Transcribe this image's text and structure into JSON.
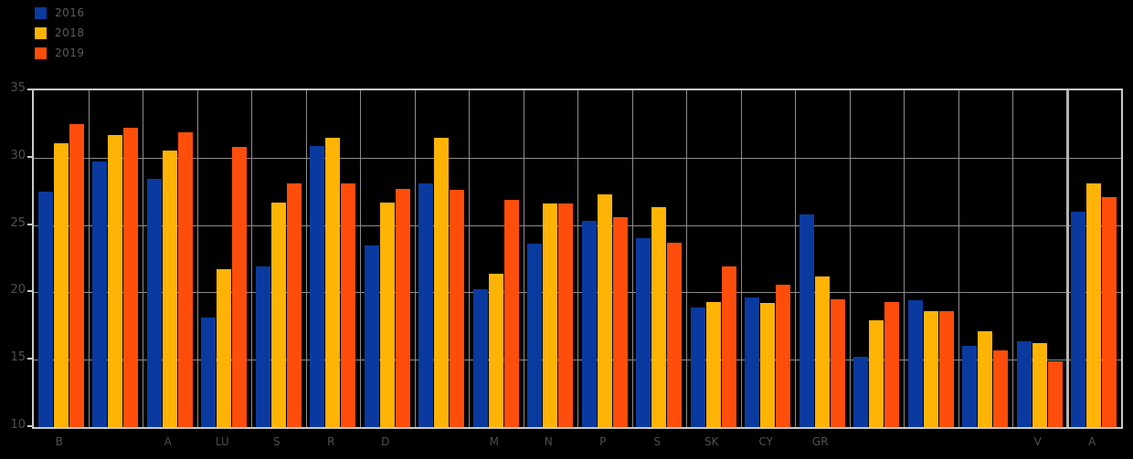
{
  "chart_data": {
    "type": "bar",
    "title": "",
    "xlabel": "",
    "ylabel": "",
    "categories": [
      "B",
      "",
      "A",
      "LU",
      "S",
      "R",
      "D",
      "",
      "M",
      "N",
      "P",
      "S",
      "SK",
      "CY",
      "GR",
      "",
      "",
      "",
      "V",
      "A"
    ],
    "series": [
      {
        "name": "2016",
        "color": "#0a3aa0",
        "values": [
          27.5,
          29.7,
          28.4,
          18.1,
          21.9,
          30.9,
          23.5,
          28.1,
          20.2,
          23.6,
          25.3,
          24.0,
          18.9,
          19.6,
          25.8,
          15.2,
          19.4,
          16.0,
          16.4,
          26.0
        ]
      },
      {
        "name": "2018",
        "color": "#ffb405",
        "values": [
          31.1,
          31.7,
          30.5,
          21.7,
          26.7,
          31.5,
          26.7,
          31.5,
          21.4,
          26.6,
          27.3,
          26.3,
          19.3,
          19.2,
          21.2,
          17.9,
          18.6,
          17.1,
          16.2,
          28.1
        ]
      },
      {
        "name": "2019",
        "color": "#ff4e0c",
        "values": [
          32.5,
          32.2,
          31.9,
          30.8,
          28.1,
          28.1,
          27.7,
          27.6,
          26.9,
          26.6,
          25.6,
          23.7,
          21.9,
          20.6,
          19.5,
          19.3,
          18.6,
          15.7,
          14.9,
          27.1
        ]
      }
    ],
    "ylim": [
      10,
      35
    ],
    "yticks": [
      10,
      15,
      20,
      25,
      30,
      35
    ],
    "grid": true,
    "legend_position": "top-left",
    "separator_before_index": 19,
    "background_color": "#000000",
    "gridline_color": "#8c8c8c",
    "frame_color": "#c9c9c9",
    "tick_label_color": "#4f4f4f"
  }
}
